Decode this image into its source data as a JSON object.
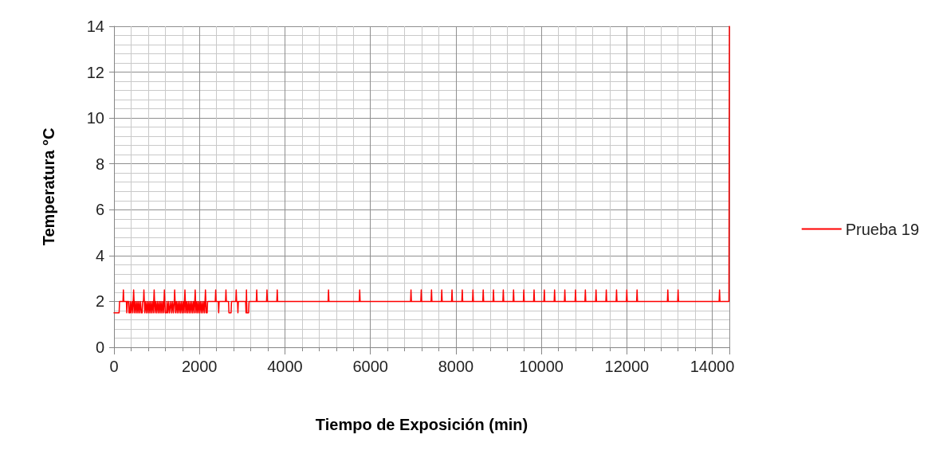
{
  "chart_data": {
    "type": "line",
    "xlabel": "Tiempo de Exposición (min)",
    "ylabel": "Temperatura °C",
    "xlim": [
      0,
      14400
    ],
    "xticks": [
      0,
      2000,
      4000,
      6000,
      8000,
      10000,
      12000,
      14000
    ],
    "ylim": [
      0,
      14
    ],
    "yticks": [
      0,
      2,
      4,
      6,
      8,
      10,
      12,
      14
    ],
    "grid": true,
    "legend": "right",
    "series": [
      {
        "name": "Prueba 19",
        "color": "#ff0000",
        "x": [
          0,
          120,
          130,
          210,
          220,
          230,
          290,
          300,
          310,
          340,
          350,
          370,
          380,
          400,
          420,
          440,
          450,
          460,
          470,
          480,
          500,
          520,
          540,
          560,
          580,
          600,
          620,
          640,
          660,
          670,
          690,
          700,
          710,
          720,
          740,
          760,
          780,
          800,
          820,
          840,
          860,
          880,
          900,
          920,
          930,
          940,
          950,
          960,
          980,
          1000,
          1020,
          1040,
          1060,
          1080,
          1100,
          1120,
          1140,
          1160,
          1170,
          1180,
          1190,
          1200,
          1230,
          1240,
          1260,
          1280,
          1300,
          1330,
          1350,
          1370,
          1390,
          1410,
          1420,
          1430,
          1440,
          1460,
          1480,
          1500,
          1520,
          1540,
          1560,
          1580,
          1600,
          1620,
          1640,
          1650,
          1660,
          1670,
          1680,
          1700,
          1720,
          1740,
          1760,
          1780,
          1800,
          1820,
          1840,
          1860,
          1880,
          1890,
          1900,
          1910,
          1920,
          1940,
          1960,
          1980,
          2000,
          2020,
          2040,
          2060,
          2080,
          2100,
          2120,
          2130,
          2140,
          2150,
          2160,
          2180,
          2190,
          2370,
          2380,
          2390,
          2440,
          2450,
          2460,
          2610,
          2620,
          2630,
          2680,
          2690,
          2740,
          2750,
          2850,
          2860,
          2870,
          2890,
          2900,
          2910,
          3080,
          3090,
          3100,
          3110,
          3150,
          3160,
          3330,
          3340,
          3350,
          3570,
          3580,
          3590,
          3810,
          3820,
          3830,
          5010,
          5020,
          5030,
          5740,
          5750,
          5760,
          6940,
          6950,
          6960,
          7180,
          7190,
          7200,
          7420,
          7430,
          7440,
          7660,
          7670,
          7680,
          7900,
          7910,
          7920,
          8140,
          8150,
          8160,
          8390,
          8400,
          8410,
          8630,
          8640,
          8650,
          8870,
          8880,
          8890,
          9100,
          9110,
          9120,
          9340,
          9350,
          9360,
          9580,
          9590,
          9600,
          9820,
          9830,
          9840,
          10060,
          10070,
          10080,
          10300,
          10310,
          10320,
          10540,
          10550,
          10560,
          10790,
          10800,
          10810,
          11020,
          11030,
          11040,
          11270,
          11280,
          11290,
          11510,
          11520,
          11530,
          11750,
          11760,
          11770,
          11990,
          12000,
          12010,
          12230,
          12240,
          12250,
          12950,
          12960,
          12970,
          13190,
          13200,
          13210,
          14160,
          14170,
          14180,
          14390,
          14400
        ],
        "values": [
          1.5,
          1.5,
          2,
          2,
          2.5,
          2,
          2,
          1.5,
          2,
          2,
          1.5,
          1.5,
          2,
          1.5,
          2,
          1.5,
          2,
          2.5,
          2,
          1.5,
          2,
          1.5,
          2,
          1.5,
          2,
          1.5,
          2,
          1.5,
          1.5,
          2,
          2,
          2.5,
          2,
          1.5,
          2,
          1.5,
          2,
          1.5,
          2,
          1.5,
          2,
          1.5,
          2,
          1.5,
          2,
          2.5,
          2,
          1.5,
          2,
          1.5,
          2,
          1.5,
          2,
          1.5,
          2,
          1.5,
          2,
          1.5,
          2,
          2.5,
          2,
          1.5,
          1.5,
          2,
          1.5,
          2,
          1.5,
          2,
          1.5,
          2,
          1.5,
          2,
          2.5,
          2,
          1.5,
          2,
          1.5,
          2,
          1.5,
          2,
          1.5,
          2,
          1.5,
          2,
          1.5,
          2,
          2.5,
          2,
          1.5,
          2,
          1.5,
          2,
          1.5,
          2,
          1.5,
          2,
          1.5,
          2,
          1.5,
          2,
          2.5,
          2,
          1.5,
          2,
          1.5,
          2,
          1.5,
          2,
          1.5,
          2,
          1.5,
          2,
          1.5,
          2,
          2.5,
          2,
          1.5,
          1.5,
          2,
          2,
          2.5,
          2,
          2,
          1.5,
          2,
          2,
          2.5,
          2,
          2,
          1.5,
          1.5,
          2,
          2,
          2.5,
          2,
          2,
          1.5,
          2,
          2,
          1.5,
          2.5,
          1.5,
          1.5,
          2,
          2,
          2.5,
          2,
          2,
          2.5,
          2,
          2,
          2.5,
          2,
          2,
          2.5,
          2,
          2,
          2.5,
          2,
          2,
          2.5,
          2,
          2,
          2.5,
          2,
          2,
          2.5,
          2,
          2,
          2.5,
          2,
          2,
          2.5,
          2,
          2,
          2.5,
          2,
          2,
          2.5,
          2,
          2,
          2.5,
          2,
          2,
          2.5,
          2,
          2,
          2.5,
          2,
          2,
          2.5,
          2,
          2,
          2.5,
          2,
          2,
          2.5,
          2,
          2,
          2.5,
          2,
          2,
          2.5,
          2,
          2,
          2.5,
          2,
          2,
          2.5,
          2,
          2,
          2.5,
          2,
          2,
          2.5,
          2,
          2,
          2.5,
          2,
          2,
          2.5,
          2,
          2,
          2.5,
          2,
          2,
          2.5,
          2,
          2,
          2.5,
          2,
          2,
          2.5,
          2,
          2,
          2.5,
          2,
          2,
          14
        ]
      }
    ]
  }
}
